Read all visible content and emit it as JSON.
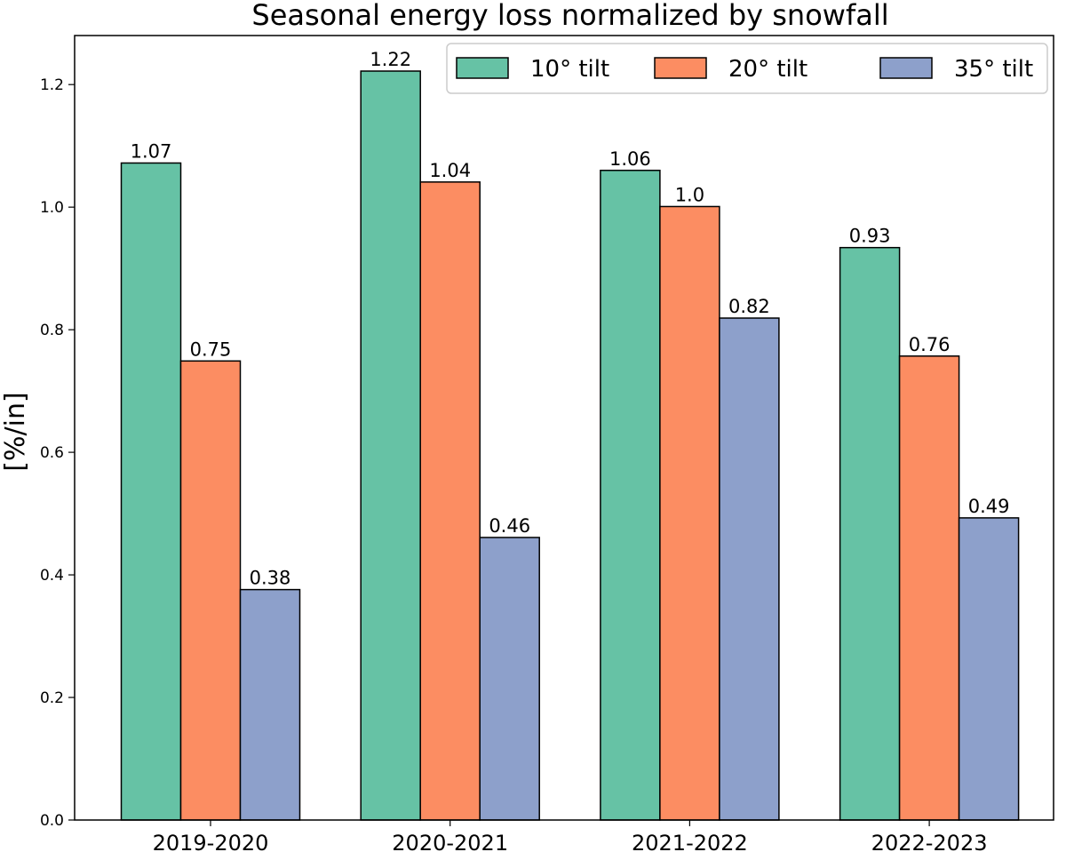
{
  "chart_data": {
    "type": "bar",
    "title": "Seasonal energy loss normalized by snowfall",
    "xlabel": "",
    "ylabel": "[%/in]",
    "ylim": [
      0,
      1.28
    ],
    "yticks": [
      "0.0",
      "0.2",
      "0.4",
      "0.6",
      "0.8",
      "1.0",
      "1.2"
    ],
    "categories": [
      "2019-2020",
      "2020-2021",
      "2021-2022",
      "2022-2023"
    ],
    "legend_position": "top-right",
    "series": [
      {
        "name": "10° tilt",
        "color": "#66c2a5",
        "values": [
          1.072,
          1.222,
          1.06,
          0.934
        ],
        "labels": [
          "1.07",
          "1.22",
          "1.06",
          "0.93"
        ]
      },
      {
        "name": "20° tilt",
        "color": "#fc8d62",
        "values": [
          0.749,
          1.041,
          1.001,
          0.757
        ],
        "labels": [
          "0.75",
          "1.04",
          "1.0",
          "0.76"
        ]
      },
      {
        "name": "35° tilt",
        "color": "#8da0cb",
        "values": [
          0.376,
          0.461,
          0.819,
          0.493
        ],
        "labels": [
          "0.38",
          "0.46",
          "0.82",
          "0.49"
        ]
      }
    ]
  }
}
